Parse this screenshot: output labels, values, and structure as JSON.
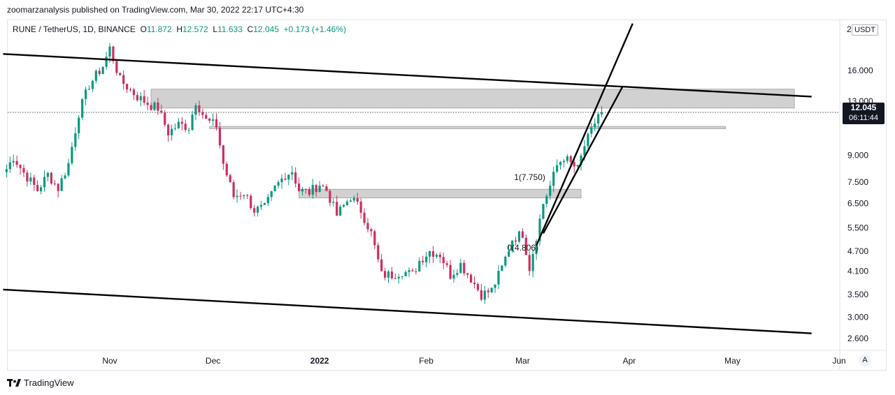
{
  "header": {
    "published_line": "zoomarzanalysis published on TradingView.com, Mar 30, 2022 22:17 UTC+4:30"
  },
  "legend": {
    "symbol": "RUNE / TetherUS, 1D, BINANCE",
    "open_label": "O",
    "open": "11.872",
    "high_label": "H",
    "high": "12.572",
    "low_label": "L",
    "low": "11.633",
    "close_label": "C",
    "close": "12.045",
    "change": "+0.173 (+1.46%)"
  },
  "price_axis": {
    "currency": "USDT",
    "top_partial_label": "2",
    "current_price": "12.045",
    "countdown": "06:11:44",
    "auto_button": "A"
  },
  "footer": {
    "brand": "TradingView"
  },
  "colors": {
    "up": "#089981",
    "down": "#cc2f5d",
    "zone": "#d1d1d1",
    "line": "#000000",
    "badge": "#131722"
  },
  "chart_data": {
    "type": "candlestick",
    "title": "RUNE / TetherUS, 1D, BINANCE",
    "yscale": "log",
    "ylim": [
      2.42,
      22.5
    ],
    "x_tick_labels": [
      {
        "label": "Nov",
        "day": 0
      },
      {
        "label": "Dec",
        "day": 30
      },
      {
        "label": "2022",
        "day": 61
      },
      {
        "label": "Feb",
        "day": 92
      },
      {
        "label": "Mar",
        "day": 120
      },
      {
        "label": "Apr",
        "day": 151
      },
      {
        "label": "May",
        "day": 181
      },
      {
        "label": "Jun",
        "day": 212
      }
    ],
    "y_tick_labels": [
      "16.000",
      "13.000",
      "9.000",
      "7.500",
      "6.500",
      "5.500",
      "4.700",
      "4.100",
      "3.500",
      "3.000",
      "2.600"
    ],
    "y_tick_values": [
      16.0,
      13.0,
      9.0,
      7.5,
      6.5,
      5.5,
      4.7,
      4.1,
      3.5,
      3.0,
      2.6
    ],
    "current_price": 12.045,
    "anchors": [
      {
        "day": -30,
        "price": 8.2
      },
      {
        "day": -28,
        "price": 8.9
      },
      {
        "day": -25,
        "price": 8.0
      },
      {
        "day": -21,
        "price": 7.1
      },
      {
        "day": -18,
        "price": 7.9
      },
      {
        "day": -15,
        "price": 7.2
      },
      {
        "day": -12,
        "price": 8.5
      },
      {
        "day": -9,
        "price": 12.0
      },
      {
        "day": -6,
        "price": 14.5
      },
      {
        "day": -2,
        "price": 16.5
      },
      {
        "day": 0,
        "price": 18.6
      },
      {
        "day": 3,
        "price": 15.0
      },
      {
        "day": 8,
        "price": 13.4
      },
      {
        "day": 12,
        "price": 12.6
      },
      {
        "day": 14,
        "price": 12.4
      },
      {
        "day": 17,
        "price": 10.5
      },
      {
        "day": 20,
        "price": 11.1
      },
      {
        "day": 23,
        "price": 10.9
      },
      {
        "day": 25,
        "price": 13.0
      },
      {
        "day": 28,
        "price": 11.4
      },
      {
        "day": 31,
        "price": 11.0
      },
      {
        "day": 33,
        "price": 8.5
      },
      {
        "day": 36,
        "price": 6.8
      },
      {
        "day": 39,
        "price": 7.0
      },
      {
        "day": 42,
        "price": 6.2
      },
      {
        "day": 45,
        "price": 6.3
      },
      {
        "day": 48,
        "price": 7.2
      },
      {
        "day": 51,
        "price": 7.9
      },
      {
        "day": 53,
        "price": 8.1
      },
      {
        "day": 55,
        "price": 7.1
      },
      {
        "day": 58,
        "price": 7.0
      },
      {
        "day": 61,
        "price": 7.4
      },
      {
        "day": 63,
        "price": 7.1
      },
      {
        "day": 66,
        "price": 6.0
      },
      {
        "day": 70,
        "price": 6.8
      },
      {
        "day": 73,
        "price": 6.2
      },
      {
        "day": 76,
        "price": 5.3
      },
      {
        "day": 79,
        "price": 4.0
      },
      {
        "day": 82,
        "price": 4.0
      },
      {
        "day": 85,
        "price": 4.1
      },
      {
        "day": 88,
        "price": 4.0
      },
      {
        "day": 90,
        "price": 4.4
      },
      {
        "day": 93,
        "price": 4.7
      },
      {
        "day": 96,
        "price": 4.6
      },
      {
        "day": 99,
        "price": 4.0
      },
      {
        "day": 102,
        "price": 4.3
      },
      {
        "day": 105,
        "price": 3.9
      },
      {
        "day": 108,
        "price": 3.5
      },
      {
        "day": 111,
        "price": 3.6
      },
      {
        "day": 114,
        "price": 4.2
      },
      {
        "day": 117,
        "price": 5.1
      },
      {
        "day": 120,
        "price": 5.3
      },
      {
        "day": 122,
        "price": 4.2
      },
      {
        "day": 124,
        "price": 5.2
      },
      {
        "day": 126,
        "price": 6.5
      },
      {
        "day": 128,
        "price": 7.3
      },
      {
        "day": 130,
        "price": 8.4
      },
      {
        "day": 132,
        "price": 8.9
      },
      {
        "day": 134,
        "price": 8.5
      },
      {
        "day": 136,
        "price": 8.2
      },
      {
        "day": 138,
        "price": 9.6
      },
      {
        "day": 140,
        "price": 10.6
      },
      {
        "day": 142,
        "price": 11.9
      },
      {
        "day": 143,
        "price": 12.045
      }
    ],
    "zones": [
      {
        "day_start": 12,
        "day_end": 199,
        "top": 14.1,
        "bottom": 12.4
      },
      {
        "day_start": 29,
        "day_end": 179,
        "top": 10.95,
        "bottom": 10.78
      },
      {
        "day_start": 55,
        "day_end": 137,
        "top": 7.15,
        "bottom": 6.74
      }
    ],
    "trendlines": [
      {
        "day1": -31,
        "price1": 17.9,
        "day2": 204,
        "price2": 13.4
      },
      {
        "day1": -31,
        "price1": 3.62,
        "day2": 204,
        "price2": 2.69
      },
      {
        "day1": 124,
        "price1": 4.88,
        "day2": 152,
        "price2": 22.0
      },
      {
        "day1": 126,
        "price1": 5.3,
        "day2": 149,
        "price2": 14.3
      }
    ],
    "fib_labels": [
      {
        "text": "1(7.750)",
        "day": 126,
        "price": 7.75
      },
      {
        "text": "0(4.806)",
        "day": 124,
        "price": 4.806
      }
    ]
  }
}
